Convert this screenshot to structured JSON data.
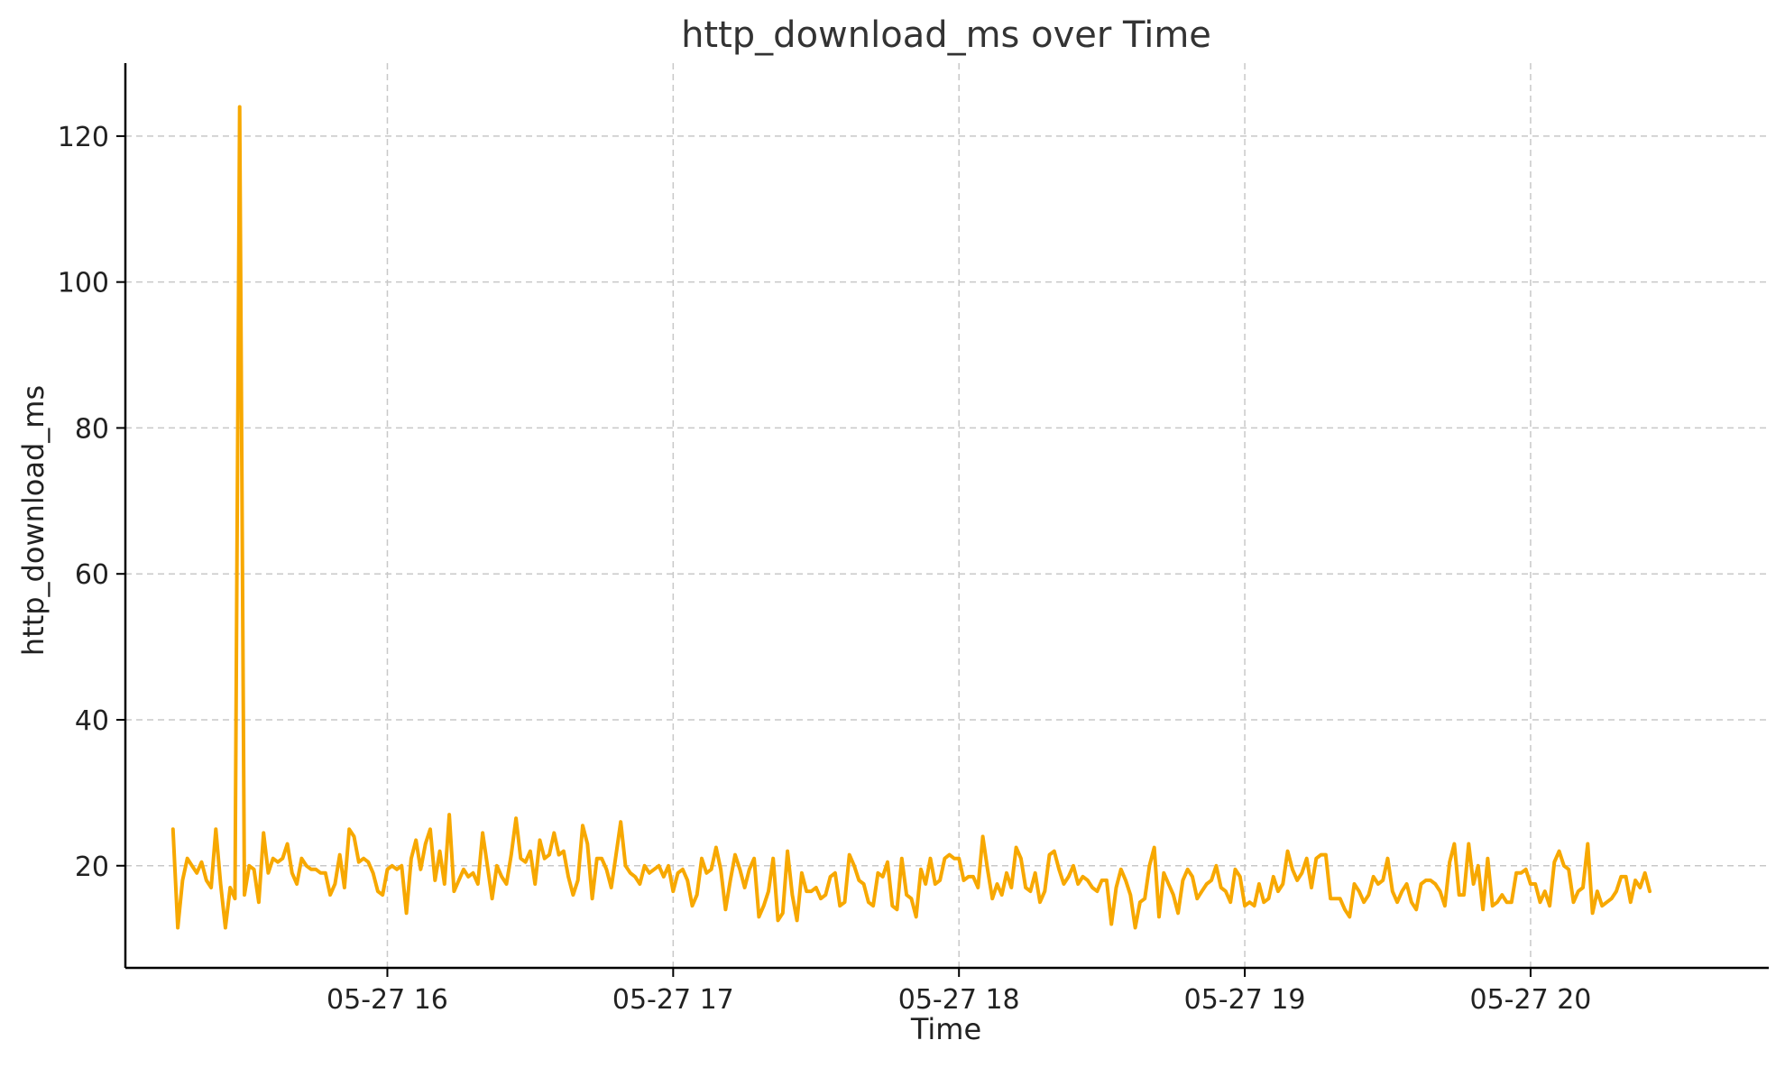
{
  "chart_data": {
    "type": "line",
    "title": "http_download_ms over Time",
    "xlabel": "Time",
    "ylabel": "http_download_ms",
    "x_ticks": [
      "05-27 16",
      "05-27 17",
      "05-27 18",
      "05-27 19",
      "05-27 20"
    ],
    "x_tick_times": [
      "2024-05-27T16:00",
      "2024-05-27T17:00",
      "2024-05-27T18:00",
      "2024-05-27T19:00",
      "2024-05-27T20:00"
    ],
    "x_range": [
      "2024-05-27T15:05",
      "2024-05-27T20:50"
    ],
    "y_ticks": [
      20,
      40,
      60,
      80,
      100,
      120
    ],
    "ylim": [
      6,
      130
    ],
    "grid": true,
    "colors": {
      "series": "#F7A800"
    },
    "series": [
      {
        "name": "",
        "x_start": "2024-05-27T15:15",
        "x_interval_minutes": 1,
        "values": [
          25.0,
          11.5,
          18.0,
          21.0,
          20.0,
          19.0,
          20.5,
          18.0,
          17.0,
          25.0,
          17.5,
          11.5,
          17.0,
          15.5,
          124.0,
          16.0,
          20.0,
          19.5,
          15.0,
          24.5,
          19.0,
          21.0,
          20.5,
          21.0,
          23.0,
          19.0,
          17.5,
          21.0,
          20.0,
          19.5,
          19.5,
          19.0,
          19.0,
          16.0,
          17.5,
          21.5,
          17.0,
          25.0,
          24.0,
          20.5,
          21.0,
          20.5,
          19.0,
          16.5,
          16.0,
          19.5,
          20.0,
          19.5,
          20.0,
          13.5,
          21.0,
          23.5,
          19.5,
          23.0,
          25.0,
          18.0,
          22.0,
          17.5,
          27.0,
          16.5,
          18.0,
          19.5,
          18.5,
          19.0,
          17.5,
          24.5,
          20.0,
          15.5,
          20.0,
          18.5,
          17.5,
          21.5,
          26.5,
          21.0,
          20.5,
          22.0,
          17.5,
          23.5,
          21.0,
          21.5,
          24.5,
          21.5,
          22.0,
          18.5,
          16.0,
          18.0,
          25.5,
          23.0,
          15.5,
          21.0,
          21.0,
          19.5,
          17.0,
          21.5,
          26.0,
          20.0,
          19.0,
          18.5,
          17.5,
          20.0,
          19.0,
          19.5,
          20.0,
          18.5,
          20.0,
          16.5,
          19.0,
          19.5,
          18.0,
          14.5,
          16.0,
          21.0,
          19.0,
          19.5,
          22.5,
          19.5,
          14.0,
          18.0,
          21.5,
          19.5,
          17.0,
          19.5,
          21.0,
          13.0,
          14.5,
          16.5,
          21.0,
          12.5,
          13.5,
          22.0,
          16.0,
          12.5,
          19.0,
          16.5,
          16.5,
          17.0,
          15.5,
          16.0,
          18.5,
          19.0,
          14.5,
          15.0,
          21.5,
          20.0,
          18.0,
          17.5,
          15.0,
          14.5,
          19.0,
          18.5,
          20.5,
          14.5,
          14.0,
          21.0,
          16.0,
          15.5,
          13.0,
          19.5,
          17.5,
          21.0,
          17.5,
          18.0,
          21.0,
          21.5,
          21.0,
          21.0,
          18.0,
          18.5,
          18.5,
          17.0,
          24.0,
          19.5,
          15.5,
          17.5,
          16.0,
          19.0,
          17.0,
          22.5,
          21.0,
          17.0,
          16.5,
          19.0,
          15.0,
          16.5,
          21.5,
          22.0,
          19.5,
          17.5,
          18.5,
          20.0,
          17.5,
          18.5,
          18.0,
          17.0,
          16.5,
          18.0,
          18.0,
          12.0,
          17.0,
          19.5,
          18.0,
          16.0,
          11.5,
          15.0,
          15.5,
          20.0,
          22.5,
          13.0,
          19.0,
          17.5,
          16.0,
          13.5,
          18.0,
          19.5,
          18.5,
          15.5,
          16.5,
          17.5,
          18.0,
          20.0,
          17.0,
          16.5,
          15.0,
          19.5,
          18.5,
          14.5,
          15.0,
          14.5,
          17.5,
          15.0,
          15.5,
          18.5,
          16.5,
          17.5,
          22.0,
          19.5,
          18.0,
          19.0,
          21.0,
          17.0,
          21.0,
          21.5,
          21.5,
          15.5,
          15.5,
          15.5,
          14.0,
          13.0,
          17.5,
          16.5,
          15.0,
          16.0,
          18.5,
          17.5,
          18.0,
          21.0,
          16.5,
          15.0,
          16.5,
          17.5,
          15.0,
          14.0,
          17.5,
          18.0,
          18.0,
          17.5,
          16.5,
          14.5,
          20.5,
          23.0,
          16.0,
          16.0,
          23.0,
          17.5,
          20.0,
          14.0,
          21.0,
          14.5,
          15.0,
          16.0,
          15.0,
          15.0,
          19.0,
          19.0,
          19.5,
          17.5,
          17.5,
          15.0,
          16.5,
          14.5,
          20.5,
          22.0,
          20.0,
          19.5,
          15.0,
          16.5,
          17.0,
          23.0,
          13.5,
          16.5,
          14.5,
          15.0,
          15.5,
          16.5,
          18.5,
          18.5,
          15.0,
          18.0,
          17.0,
          19.0,
          16.5
        ]
      }
    ]
  }
}
